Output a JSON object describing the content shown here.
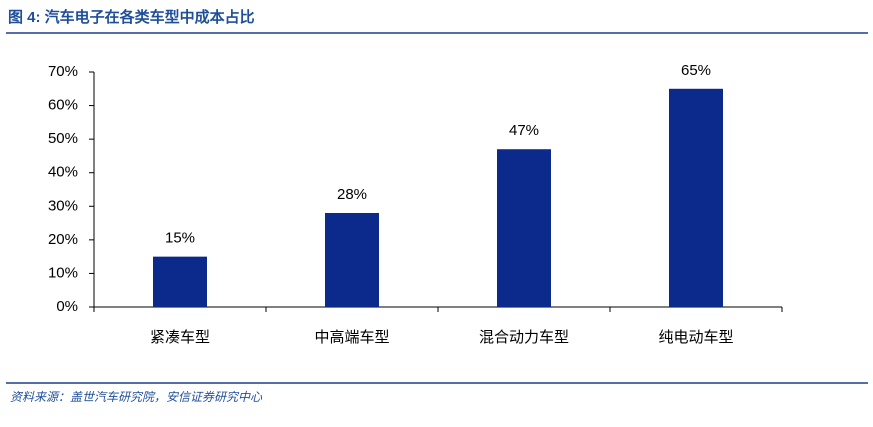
{
  "chart_data": {
    "type": "bar",
    "title": "图 4:  汽车电子在各类车型中成本占比",
    "source": "资料来源：盖世汽车研究院，安信证券研究中心",
    "categories": [
      "紧凑车型",
      "中高端车型",
      "混合动力车型",
      "纯电动车型"
    ],
    "values": [
      15,
      28,
      47,
      65
    ],
    "value_labels": [
      "15%",
      "28%",
      "47%",
      "65%"
    ],
    "color": "#0c2a8c",
    "ylim": [
      0,
      70
    ],
    "yticks": [
      {
        "value": 0,
        "label": "0%"
      },
      {
        "value": 10,
        "label": "10%"
      },
      {
        "value": 20,
        "label": "20%"
      },
      {
        "value": 30,
        "label": "30%"
      },
      {
        "value": 40,
        "label": "40%"
      },
      {
        "value": 50,
        "label": "50%"
      },
      {
        "value": 60,
        "label": "60%"
      },
      {
        "value": 70,
        "label": "70%"
      }
    ],
    "grid": false
  }
}
